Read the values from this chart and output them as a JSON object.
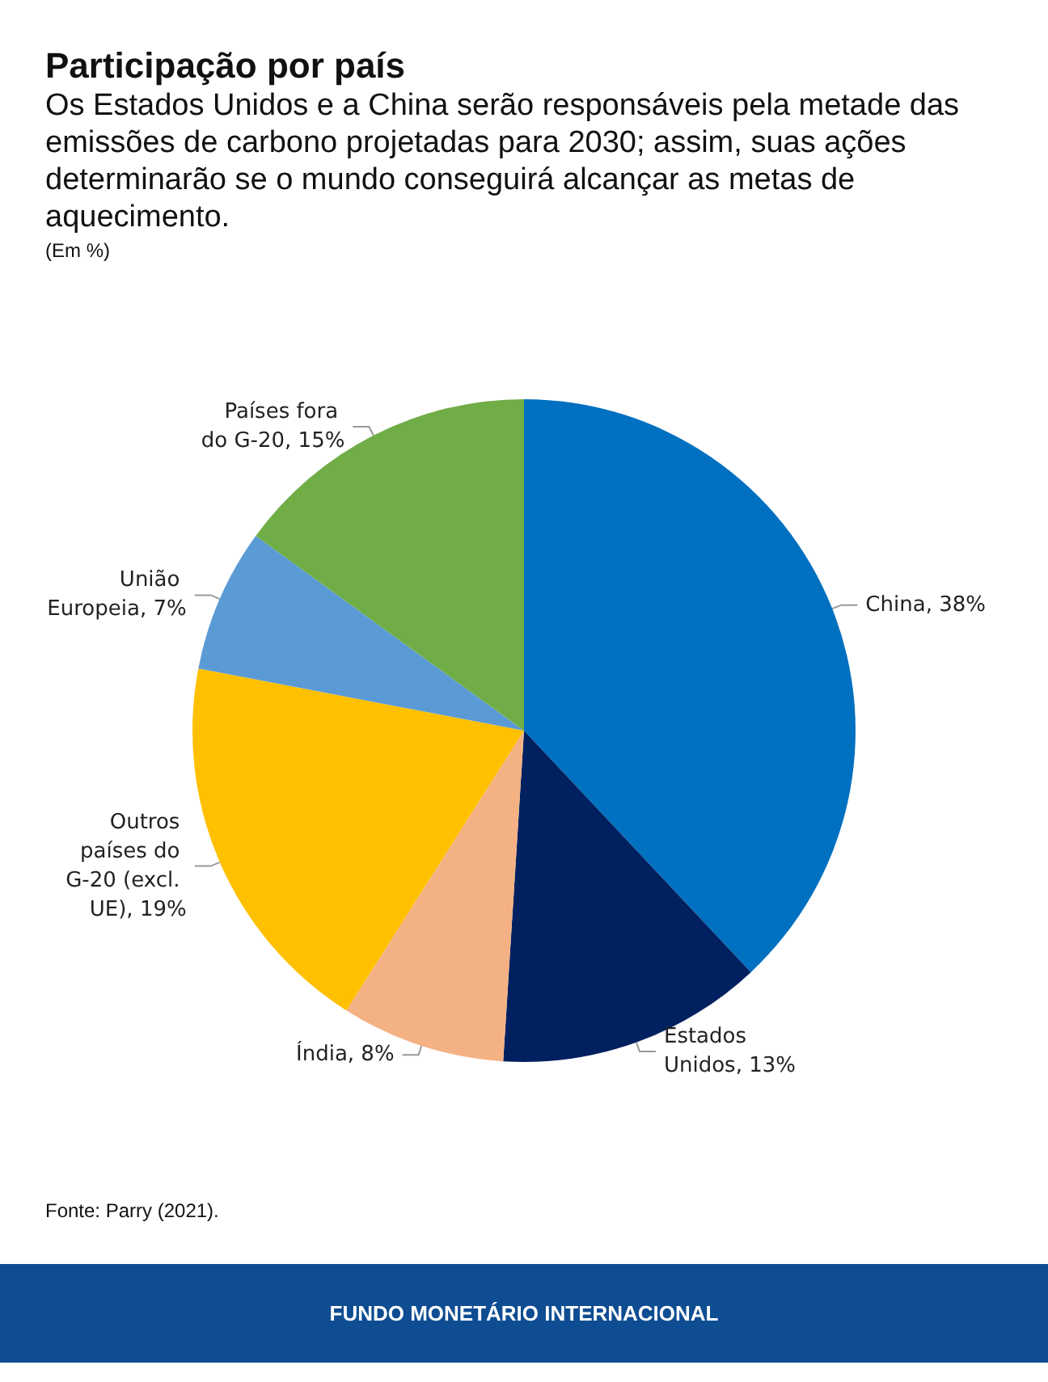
{
  "chart_data": {
    "type": "pie",
    "title": "Participação por país",
    "subtitle": "Os Estados Unidos e a China serão responsáveis pela metade das emissões de carbono projetadas para 2030; assim, suas ações determinarão se o mundo conseguirá alcançar as metas de aquecimento.",
    "annotations": [
      "(Em %)",
      "Fonte: Parry (2021).",
      "FUNDO MONETÁRIO INTERNACIONAL"
    ],
    "categories": [
      "China",
      "Estados Unidos",
      "Índia",
      "Outros países do G-20 (excl. UE)",
      "União Europeia",
      "Países fora do G-20"
    ],
    "values": [
      38,
      13,
      8,
      19,
      7,
      15
    ],
    "colors": [
      "#0070c0",
      "#002060",
      "#f4b183",
      "#ffc000",
      "#5b9bd5",
      "#70ad47"
    ],
    "value_labels": [
      "38%",
      "13%",
      "8%",
      "19%",
      "7%",
      "15%"
    ],
    "legend": false
  }
}
